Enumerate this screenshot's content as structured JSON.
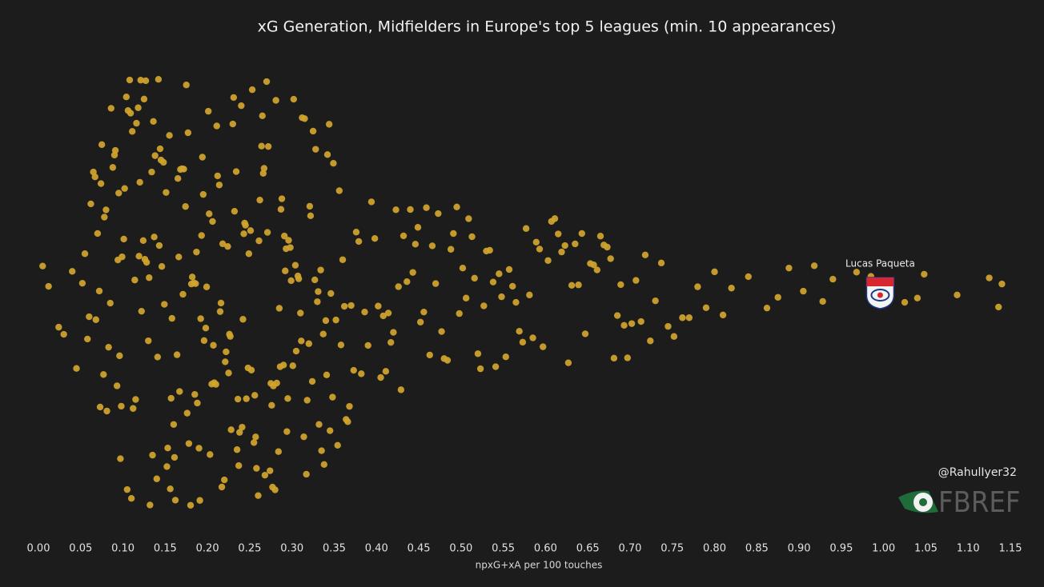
{
  "chart_data": {
    "type": "strip",
    "title": "xG Generation, Midfielders in Europe's top 5 leagues (min. 10 appearances)",
    "xlabel": "npxG+xA per 100 touches",
    "credit": "@RahulIyer32",
    "source_logo": "FBREF",
    "color": "#d1a52c",
    "background": "#1c1c1c",
    "xlim": [
      0,
      1.15
    ],
    "xticks": [
      {
        "value": 0,
        "label": "0.00"
      },
      {
        "value": 0.05,
        "label": "0.05"
      },
      {
        "value": 0.1,
        "label": "0.10"
      },
      {
        "value": 0.15,
        "label": "0.15"
      },
      {
        "value": 0.2,
        "label": "0.20"
      },
      {
        "value": 0.25,
        "label": "0.25"
      },
      {
        "value": 0.3,
        "label": "0.30"
      },
      {
        "value": 0.35,
        "label": "0.35"
      },
      {
        "value": 0.4,
        "label": "0.40"
      },
      {
        "value": 0.45,
        "label": "0.45"
      },
      {
        "value": 0.5,
        "label": "0.50"
      },
      {
        "value": 0.55,
        "label": "0.55"
      },
      {
        "value": 0.6,
        "label": "0.60"
      },
      {
        "value": 0.65,
        "label": "0.65"
      },
      {
        "value": 0.7,
        "label": "0.70"
      },
      {
        "value": 0.75,
        "label": "0.75"
      },
      {
        "value": 0.8,
        "label": "0.80"
      },
      {
        "value": 0.85,
        "label": "0.85"
      },
      {
        "value": 0.9,
        "label": "0.90"
      },
      {
        "value": 0.95,
        "label": "0.95"
      },
      {
        "value": 1,
        "label": "1.00"
      },
      {
        "value": 1.05,
        "label": "1.05"
      },
      {
        "value": 1.1,
        "label": "1.10"
      },
      {
        "value": 1.15,
        "label": "1.15"
      }
    ],
    "highlight": {
      "label": "Lucas Paqueta",
      "x": 0.996
    },
    "x": [
      0.005,
      0.012,
      0.024,
      0.03,
      0.04,
      0.045,
      0.052,
      0.055,
      0.058,
      0.06,
      0.062,
      0.065,
      0.067,
      0.07,
      0.072,
      0.074,
      0.075,
      0.077,
      0.078,
      0.08,
      0.081,
      0.083,
      0.085,
      0.086,
      0.088,
      0.09,
      0.091,
      0.093,
      0.094,
      0.095,
      0.096,
      0.097,
      0.098,
      0.099,
      0.068,
      0.073,
      0.101,
      0.102,
      0.104,
      0.105,
      0.106,
      0.108,
      0.109,
      0.11,
      0.111,
      0.112,
      0.114,
      0.115,
      0.116,
      0.118,
      0.119,
      0.12,
      0.121,
      0.122,
      0.124,
      0.125,
      0.126,
      0.127,
      0.128,
      0.13,
      0.131,
      0.132,
      0.134,
      0.135,
      0.136,
      0.137,
      0.138,
      0.14,
      0.141,
      0.142,
      0.143,
      0.144,
      0.145,
      0.146,
      0.148,
      0.149,
      0.151,
      0.152,
      0.153,
      0.155,
      0.156,
      0.157,
      0.158,
      0.16,
      0.161,
      0.162,
      0.164,
      0.165,
      0.166,
      0.167,
      0.168,
      0.17,
      0.171,
      0.172,
      0.174,
      0.175,
      0.176,
      0.177,
      0.178,
      0.18,
      0.181,
      0.182,
      0.184,
      0.185,
      0.186,
      0.187,
      0.188,
      0.19,
      0.191,
      0.192,
      0.193,
      0.194,
      0.195,
      0.196,
      0.198,
      0.199,
      0.201,
      0.202,
      0.203,
      0.205,
      0.206,
      0.207,
      0.208,
      0.21,
      0.211,
      0.212,
      0.214,
      0.215,
      0.216,
      0.217,
      0.218,
      0.22,
      0.221,
      0.222,
      0.224,
      0.225,
      0.226,
      0.227,
      0.228,
      0.23,
      0.231,
      0.232,
      0.234,
      0.235,
      0.236,
      0.237,
      0.238,
      0.24,
      0.241,
      0.242,
      0.243,
      0.244,
      0.245,
      0.246,
      0.248,
      0.249,
      0.251,
      0.252,
      0.253,
      0.255,
      0.256,
      0.257,
      0.258,
      0.26,
      0.261,
      0.262,
      0.264,
      0.265,
      0.266,
      0.267,
      0.268,
      0.27,
      0.271,
      0.272,
      0.274,
      0.275,
      0.276,
      0.277,
      0.278,
      0.28,
      0.281,
      0.282,
      0.284,
      0.285,
      0.286,
      0.287,
      0.288,
      0.29,
      0.291,
      0.292,
      0.293,
      0.294,
      0.295,
      0.296,
      0.298,
      0.299,
      0.301,
      0.302,
      0.304,
      0.305,
      0.307,
      0.308,
      0.31,
      0.311,
      0.312,
      0.314,
      0.315,
      0.317,
      0.318,
      0.32,
      0.321,
      0.322,
      0.324,
      0.325,
      0.327,
      0.328,
      0.33,
      0.331,
      0.332,
      0.334,
      0.335,
      0.337,
      0.338,
      0.34,
      0.341,
      0.342,
      0.344,
      0.345,
      0.346,
      0.348,
      0.349,
      0.352,
      0.354,
      0.356,
      0.358,
      0.36,
      0.362,
      0.364,
      0.366,
      0.368,
      0.37,
      0.373,
      0.376,
      0.379,
      0.382,
      0.386,
      0.39,
      0.394,
      0.398,
      0.402,
      0.405,
      0.408,
      0.411,
      0.414,
      0.417,
      0.42,
      0.423,
      0.426,
      0.429,
      0.432,
      0.436,
      0.44,
      0.443,
      0.446,
      0.449,
      0.452,
      0.456,
      0.459,
      0.463,
      0.466,
      0.47,
      0.473,
      0.477,
      0.48,
      0.484,
      0.488,
      0.491,
      0.495,
      0.498,
      0.502,
      0.506,
      0.509,
      0.513,
      0.516,
      0.52,
      0.523,
      0.527,
      0.53,
      0.534,
      0.538,
      0.541,
      0.545,
      0.548,
      0.553,
      0.557,
      0.561,
      0.565,
      0.569,
      0.573,
      0.577,
      0.581,
      0.585,
      0.589,
      0.593,
      0.597,
      0.603,
      0.607,
      0.611,
      0.615,
      0.619,
      0.623,
      0.627,
      0.631,
      0.635,
      0.639,
      0.643,
      0.647,
      0.653,
      0.657,
      0.661,
      0.665,
      0.669,
      0.673,
      0.677,
      0.681,
      0.685,
      0.689,
      0.693,
      0.697,
      0.702,
      0.707,
      0.713,
      0.718,
      0.724,
      0.73,
      0.737,
      0.745,
      0.752,
      0.762,
      0.77,
      0.78,
      0.79,
      0.8,
      0.81,
      0.82,
      0.84,
      0.862,
      0.875,
      0.888,
      0.905,
      0.918,
      0.928,
      0.94,
      0.968,
      0.985,
      1.025,
      1.04,
      1.048,
      1.087,
      1.125,
      1.136,
      1.14
    ]
  }
}
